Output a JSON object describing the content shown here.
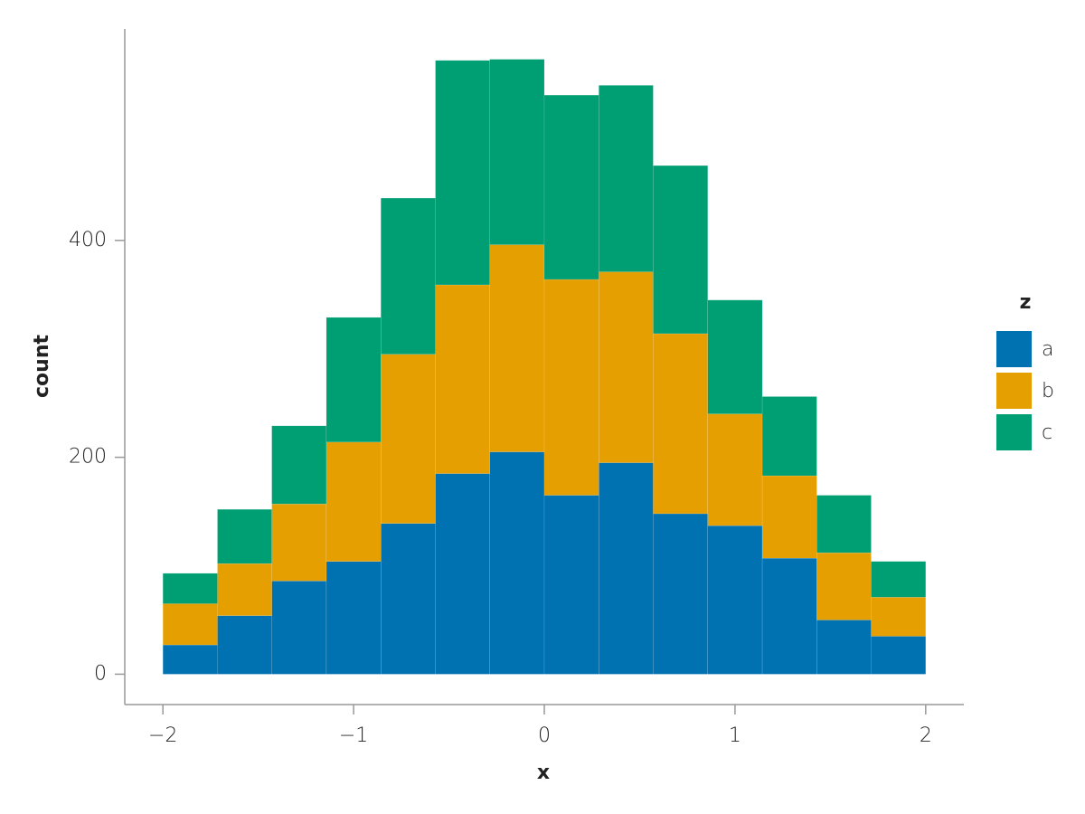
{
  "chart_data": {
    "type": "histogram",
    "stacked": true,
    "x_label": "x",
    "y_label": "count",
    "legend_title": "z",
    "legend_position": "right",
    "bins": [
      -2,
      -1.714,
      -1.429,
      -1.143,
      -0.857,
      -0.571,
      -0.286,
      0,
      0.286,
      0.571,
      0.857,
      1.143,
      1.429,
      1.714,
      2
    ],
    "series": [
      {
        "name": "a",
        "color": "#0072b2",
        "values": [
          27,
          54,
          86,
          104,
          139,
          185,
          205,
          165,
          195,
          148,
          137,
          107,
          50,
          35
        ]
      },
      {
        "name": "b",
        "color": "#e69f00",
        "values": [
          38,
          48,
          71,
          110,
          156,
          174,
          191,
          199,
          176,
          166,
          103,
          76,
          62,
          36
        ]
      },
      {
        "name": "c",
        "color": "#009e73",
        "values": [
          28,
          50,
          72,
          115,
          144,
          207,
          171,
          170,
          172,
          155,
          105,
          73,
          53,
          33
        ]
      }
    ],
    "xlim": [
      -2.2,
      2.2
    ],
    "xticks": [
      {
        "value": -2,
        "label": "−2"
      },
      {
        "value": -1,
        "label": "−1"
      },
      0,
      1,
      2
    ],
    "ylim": [
      -28,
      595
    ],
    "yticks": [
      0,
      200,
      400
    ]
  }
}
